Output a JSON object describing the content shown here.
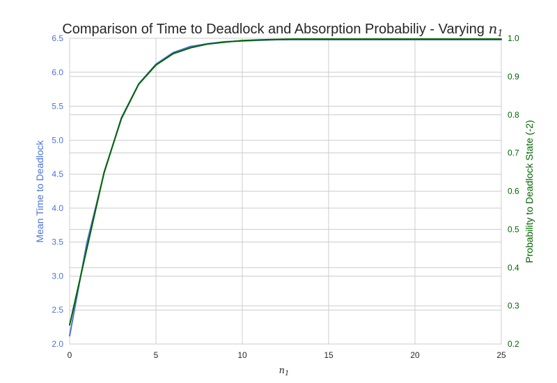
{
  "chart_data": {
    "type": "line",
    "title": "Comparison of Time to Deadlock and Absorption Probabiliy - Varying ",
    "title_math": "n",
    "title_math_sub": "1",
    "xlabel": "n",
    "xlabel_sub": "1",
    "xlim": [
      0,
      25
    ],
    "xticks": [
      "0",
      "5",
      "10",
      "15",
      "20",
      "25"
    ],
    "grid": true,
    "left_axis": {
      "label": "Mean Time to Deadlock",
      "ylim": [
        2.0,
        6.5
      ],
      "ticks": [
        "2.0",
        "2.5",
        "3.0",
        "3.5",
        "4.0",
        "4.5",
        "5.0",
        "5.5",
        "6.0",
        "6.5"
      ],
      "color": "#4c72d8"
    },
    "right_axis": {
      "label": "Probability to Deadlock State (-2)",
      "ylim": [
        0.2,
        1.0
      ],
      "ticks": [
        "0.2",
        "0.3",
        "0.4",
        "0.5",
        "0.6",
        "0.7",
        "0.8",
        "0.9",
        "1.0"
      ],
      "color": "#006400"
    },
    "series": [
      {
        "axis": "left",
        "color": "#4c72d8",
        "x": [
          0,
          1,
          2,
          3,
          4,
          5,
          6,
          7,
          8,
          9,
          10,
          11,
          12,
          13,
          14,
          15,
          16,
          17,
          18,
          19,
          20,
          21,
          22,
          23,
          24,
          25
        ],
        "values": [
          2.12,
          3.49,
          4.52,
          5.33,
          5.83,
          6.12,
          6.29,
          6.38,
          6.42,
          6.45,
          6.46,
          6.47,
          6.48,
          6.48,
          6.48,
          6.48,
          6.48,
          6.48,
          6.48,
          6.48,
          6.48,
          6.48,
          6.48,
          6.48,
          6.48,
          6.48
        ]
      },
      {
        "axis": "right",
        "color": "#006400",
        "x": [
          0,
          1,
          2,
          3,
          4,
          5,
          6,
          7,
          8,
          9,
          10,
          11,
          12,
          13,
          14,
          15,
          16,
          17,
          18,
          19,
          20,
          21,
          22,
          23,
          24,
          25
        ],
        "values": [
          0.25,
          0.45,
          0.65,
          0.79,
          0.88,
          0.93,
          0.96,
          0.975,
          0.985,
          0.99,
          0.994,
          0.996,
          0.997,
          0.998,
          0.998,
          0.998,
          0.998,
          0.998,
          0.998,
          0.998,
          0.998,
          0.998,
          0.998,
          0.998,
          0.998,
          0.998
        ]
      }
    ]
  }
}
